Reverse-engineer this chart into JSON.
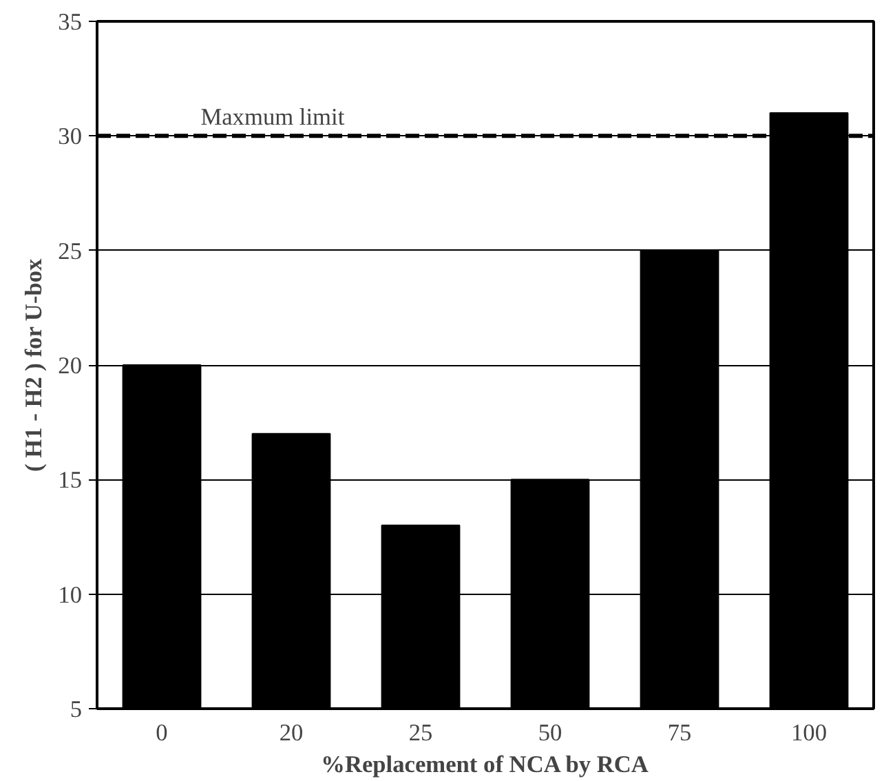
{
  "chart_data": {
    "type": "bar",
    "xlabel": "%Replacement of NCA by RCA",
    "ylabel": "( H1 - H2 ) for U-box",
    "categories": [
      "0",
      "20",
      "25",
      "50",
      "75",
      "100"
    ],
    "series": [
      {
        "color": "#000000",
        "values": [
          20,
          17,
          13,
          15,
          25,
          31
        ]
      }
    ],
    "ylim": [
      5,
      35
    ],
    "yticks": [
      5,
      10,
      15,
      20,
      25,
      30,
      35
    ],
    "grid": "y",
    "ref_lines": [
      {
        "axis": "y",
        "value": 30,
        "label": "Maxmum limit",
        "color": "#000000",
        "line_style": "dashed"
      }
    ]
  }
}
